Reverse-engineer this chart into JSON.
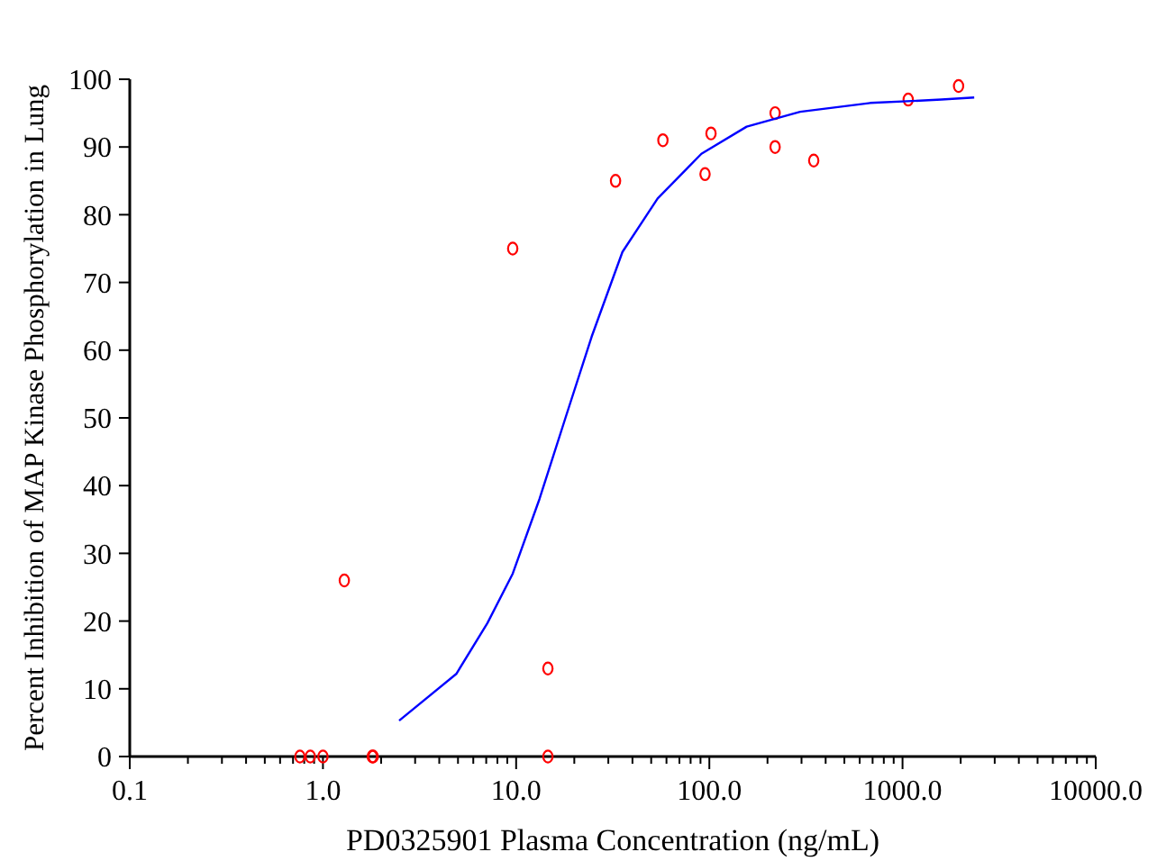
{
  "chart_data": {
    "type": "scatter",
    "xlabel": "PD0325901 Plasma Concentration (ng/mL)",
    "ylabel": "Percent Inhibition of MAP Kinase Phosphorylation in Lung",
    "log": "x",
    "xlim": [
      0.1,
      10000
    ],
    "ylim": [
      0,
      100
    ],
    "xticks": [
      {
        "value": 0.1,
        "label": "0.1"
      },
      {
        "value": 0.2,
        "label": null
      },
      {
        "value": 0.3,
        "label": null
      },
      {
        "value": 0.4,
        "label": null
      },
      {
        "value": 0.5,
        "label": null
      },
      {
        "value": 0.6,
        "label": null
      },
      {
        "value": 0.7,
        "label": null
      },
      {
        "value": 0.8,
        "label": null
      },
      {
        "value": 0.9,
        "label": null
      },
      {
        "value": 1,
        "label": "1.0"
      },
      {
        "value": 2,
        "label": null
      },
      {
        "value": 3,
        "label": null
      },
      {
        "value": 4,
        "label": null
      },
      {
        "value": 5,
        "label": null
      },
      {
        "value": 6,
        "label": null
      },
      {
        "value": 7,
        "label": null
      },
      {
        "value": 8,
        "label": null
      },
      {
        "value": 9,
        "label": null
      },
      {
        "value": 10,
        "label": "10.0"
      },
      {
        "value": 20,
        "label": null
      },
      {
        "value": 30,
        "label": null
      },
      {
        "value": 40,
        "label": null
      },
      {
        "value": 50,
        "label": null
      },
      {
        "value": 60,
        "label": null
      },
      {
        "value": 70,
        "label": null
      },
      {
        "value": 80,
        "label": null
      },
      {
        "value": 90,
        "label": null
      },
      {
        "value": 100,
        "label": "100.0"
      },
      {
        "value": 200,
        "label": null
      },
      {
        "value": 300,
        "label": null
      },
      {
        "value": 400,
        "label": null
      },
      {
        "value": 500,
        "label": null
      },
      {
        "value": 600,
        "label": null
      },
      {
        "value": 700,
        "label": null
      },
      {
        "value": 800,
        "label": null
      },
      {
        "value": 900,
        "label": null
      },
      {
        "value": 1000,
        "label": "1000.0"
      },
      {
        "value": 2000,
        "label": null
      },
      {
        "value": 3000,
        "label": null
      },
      {
        "value": 4000,
        "label": null
      },
      {
        "value": 5000,
        "label": null
      },
      {
        "value": 6000,
        "label": null
      },
      {
        "value": 7000,
        "label": null
      },
      {
        "value": 8000,
        "label": null
      },
      {
        "value": 9000,
        "label": null
      },
      {
        "value": 10000,
        "label": "10000.0"
      }
    ],
    "yticks": [
      0,
      10,
      20,
      30,
      40,
      50,
      60,
      70,
      80,
      90,
      100
    ],
    "grid": false,
    "series": [
      {
        "marker": "circle",
        "color": "#ff0000",
        "x": [
          0.76,
          0.86,
          1.0,
          1.29,
          1.8,
          1.82,
          9.6,
          14.6,
          14.6,
          32.7,
          57.5,
          95,
          102,
          219,
          219,
          347,
          1070,
          1950
        ],
        "values": [
          0,
          0,
          0,
          26,
          0,
          0,
          75,
          13,
          0,
          85,
          91,
          86,
          92,
          95,
          90,
          88,
          97,
          99
        ]
      },
      {
        "type": "line",
        "marker": "none",
        "line_style": "solid",
        "color": "#0000ff",
        "x": [
          2.48,
          4.9,
          7.1,
          9.6,
          13.2,
          18,
          24.6,
          35.5,
          54,
          91,
          156,
          295,
          680,
          1590,
          2350
        ],
        "values": [
          5.3,
          12.2,
          19.7,
          27,
          38,
          50,
          62,
          74.5,
          82.4,
          89,
          93,
          95.2,
          96.5,
          97,
          97.3
        ]
      }
    ]
  }
}
